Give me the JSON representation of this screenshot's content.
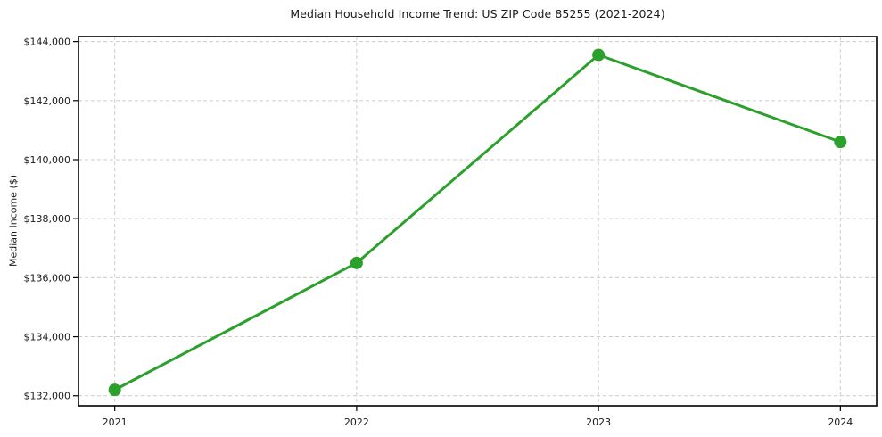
{
  "chart_data": {
    "type": "line",
    "title": "Median Household Income Trend: US ZIP Code 85255 (2021-2024)",
    "ylabel": "Median Income ($)",
    "xlabel": "",
    "x": [
      2021,
      2022,
      2023,
      2024
    ],
    "xtick_labels": [
      "2021",
      "2022",
      "2023",
      "2024"
    ],
    "values": [
      132200,
      136500,
      143550,
      140600
    ],
    "yticks": [
      132000,
      134000,
      136000,
      138000,
      140000,
      142000,
      144000
    ],
    "ytick_labels": [
      "$132,000",
      "$134,000",
      "$136,000",
      "$138,000",
      "$140,000",
      "$142,000",
      "$144,000"
    ],
    "xlim": [
      2020.85,
      2024.15
    ],
    "ylim": [
      131660,
      144170
    ],
    "grid": true,
    "grid_style": "dashed",
    "legend": false,
    "colors": {
      "line": "#2ca02c",
      "marker": "#2ca02c",
      "grid": "#cccccc",
      "spine": "#000000",
      "tick": "#000000",
      "text": "#1a1a1a",
      "background": "#ffffff"
    }
  }
}
